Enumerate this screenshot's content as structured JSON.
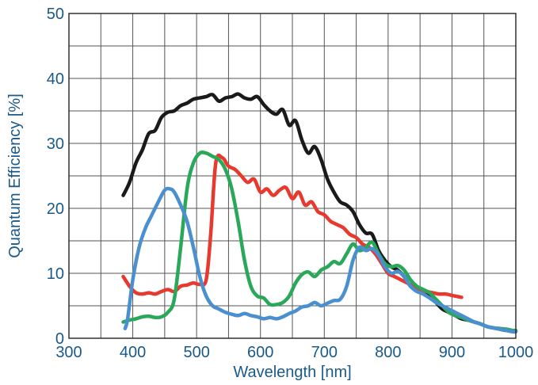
{
  "chart_data": {
    "type": "line",
    "xlabel": "Wavelength [nm]",
    "ylabel": "Quantum Efficiency [%]",
    "xlim": [
      300,
      1000
    ],
    "ylim": [
      0,
      50
    ],
    "x_ticks": [
      300,
      400,
      500,
      600,
      700,
      800,
      900,
      1000
    ],
    "y_ticks": [
      0,
      10,
      20,
      30,
      40,
      50
    ],
    "grid": true,
    "grid_x_step": 50,
    "grid_y_step": 5,
    "series": [
      {
        "color": "#1a1a1a",
        "x": [
          385,
          395,
          405,
          415,
          425,
          435,
          445,
          455,
          465,
          475,
          485,
          495,
          505,
          515,
          525,
          535,
          545,
          555,
          565,
          575,
          585,
          595,
          605,
          615,
          625,
          635,
          645,
          655,
          665,
          675,
          685,
          695,
          705,
          715,
          725,
          735,
          745,
          755,
          765,
          775,
          785,
          795,
          805,
          815,
          825,
          835,
          845,
          855,
          865,
          875,
          885,
          895,
          905,
          915,
          925,
          935,
          945,
          955,
          965,
          975,
          985,
          995,
          1000
        ],
        "y": [
          22,
          24,
          27,
          29,
          31.5,
          32,
          34,
          34.8,
          35,
          35.8,
          36.2,
          36.8,
          37,
          37.2,
          37.5,
          36.5,
          37,
          37.2,
          37.6,
          37,
          36.8,
          37.2,
          36,
          35,
          34.5,
          35.2,
          32.8,
          33.5,
          30.5,
          28.5,
          29.5,
          27.5,
          24.5,
          22.5,
          21,
          20.5,
          19.5,
          17.5,
          16.2,
          16,
          13.5,
          12,
          11,
          10.5,
          9.5,
          8,
          7.5,
          7,
          6.5,
          5.5,
          4.5,
          4,
          3.5,
          3,
          2.8,
          2.5,
          2.2,
          1.8,
          1.6,
          1.4,
          1.2,
          1.1,
          1.1
        ]
      },
      {
        "color": "#e8392e",
        "x": [
          385,
          395,
          405,
          415,
          425,
          435,
          445,
          455,
          465,
          475,
          485,
          495,
          505,
          515,
          522,
          530,
          540,
          550,
          560,
          570,
          580,
          590,
          600,
          610,
          620,
          630,
          640,
          650,
          660,
          670,
          680,
          690,
          700,
          710,
          720,
          730,
          740,
          750,
          760,
          770,
          780,
          790,
          800,
          810,
          820,
          830,
          840,
          850,
          860,
          870,
          880,
          890,
          900,
          910,
          915
        ],
        "y": [
          9.5,
          8,
          7,
          6.8,
          7,
          6.8,
          7.2,
          7.5,
          7.2,
          8,
          8.2,
          8.5,
          8.3,
          9,
          16,
          27,
          27.8,
          26.5,
          26,
          25,
          24,
          24.5,
          22.5,
          23,
          22,
          22.8,
          23.2,
          21.5,
          22.5,
          20.5,
          21,
          19.5,
          19,
          18,
          17.5,
          17,
          16,
          15.5,
          14.5,
          14,
          13,
          11.5,
          10,
          9.5,
          9,
          8.5,
          8,
          7.5,
          7.2,
          7,
          6.8,
          6.8,
          6.6,
          6.4,
          6.3
        ]
      },
      {
        "color": "#2aa85a",
        "x": [
          385,
          395,
          405,
          415,
          425,
          435,
          445,
          455,
          465,
          475,
          485,
          495,
          505,
          515,
          525,
          535,
          545,
          555,
          565,
          575,
          585,
          595,
          605,
          615,
          625,
          635,
          645,
          655,
          665,
          675,
          685,
          695,
          705,
          715,
          725,
          735,
          745,
          755,
          765,
          775,
          785,
          795,
          805,
          815,
          825,
          835,
          845,
          855,
          865,
          875,
          885,
          895,
          905,
          915,
          925,
          935,
          945,
          955,
          965,
          975,
          985,
          995,
          1000
        ],
        "y": [
          2.5,
          2.8,
          3,
          3.3,
          3.4,
          3.2,
          3.3,
          4,
          6,
          14,
          23,
          27,
          28.5,
          28.5,
          28,
          27.5,
          26,
          23,
          18,
          12,
          8,
          6.5,
          6.2,
          5.2,
          5.2,
          5.5,
          6.5,
          8.5,
          9.8,
          10.2,
          9.5,
          10.5,
          11,
          11.8,
          11.5,
          13,
          14.5,
          13.5,
          14,
          14.8,
          13,
          11.5,
          11,
          11.2,
          10.5,
          9,
          8,
          7.5,
          7,
          6,
          5,
          4,
          3.5,
          3.2,
          2.8,
          2.5,
          2.2,
          1.8,
          1.6,
          1.5,
          1.4,
          1.2,
          1.2
        ]
      },
      {
        "color": "#4a90d0",
        "x": [
          388,
          392,
          400,
          410,
          420,
          430,
          440,
          450,
          458,
          465,
          475,
          485,
          495,
          505,
          515,
          525,
          535,
          545,
          555,
          565,
          575,
          585,
          595,
          605,
          615,
          625,
          635,
          645,
          655,
          665,
          675,
          685,
          695,
          705,
          715,
          725,
          735,
          745,
          755,
          765,
          775,
          785,
          795,
          805,
          815,
          825,
          835,
          845,
          855,
          865,
          875,
          885,
          895,
          905,
          915,
          925,
          935,
          945,
          955,
          965,
          975,
          985,
          995,
          1000
        ],
        "y": [
          1.5,
          3,
          9,
          14,
          17,
          19,
          21,
          22.8,
          23,
          22.5,
          20.5,
          18,
          14,
          9.5,
          6.5,
          5,
          4.5,
          4,
          3.7,
          3.5,
          3.8,
          3.5,
          3.3,
          3,
          3.2,
          3,
          3.3,
          3.8,
          4.2,
          4.8,
          5,
          5.5,
          5,
          5.4,
          5.8,
          6,
          8,
          12,
          14,
          13.5,
          13.8,
          12.8,
          11,
          10,
          10.3,
          9.5,
          8,
          7.2,
          6.8,
          6.2,
          5.5,
          5,
          4.5,
          4,
          3.5,
          3,
          2.5,
          2.2,
          1.8,
          1.6,
          1.4,
          1.2,
          1,
          1
        ]
      }
    ]
  }
}
